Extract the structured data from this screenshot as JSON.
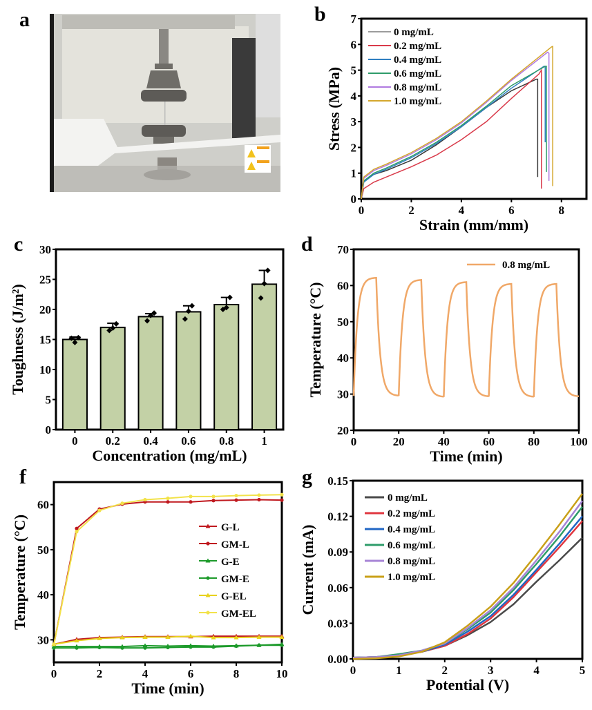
{
  "figure": {
    "panel_labels": [
      "a",
      "b",
      "c",
      "d",
      "f",
      "g"
    ],
    "photo": {
      "label": "a",
      "description": "Tensile testing machine with hydrogel sample clamped between grips"
    }
  },
  "chart_data": [
    {
      "id": "b",
      "type": "line",
      "panel_label": "b",
      "title": "",
      "xlabel": "Strain (mm/mm)",
      "ylabel": "Stress (MPa)",
      "xlim": [
        0,
        9
      ],
      "ylim": [
        0,
        7
      ],
      "xticks": [
        0,
        2,
        4,
        6,
        8
      ],
      "yticks": [
        0,
        1,
        2,
        3,
        4,
        5,
        6,
        7
      ],
      "legend_position": "top-left",
      "series": [
        {
          "name": "0 mg/mL",
          "color": "#3a3a3a",
          "x": [
            0,
            0.1,
            0.5,
            1,
            2,
            3,
            4,
            5,
            6,
            7.0,
            7.05,
            7.05
          ],
          "y": [
            0,
            0.7,
            0.95,
            1.1,
            1.5,
            2.1,
            2.8,
            3.55,
            4.2,
            4.65,
            4.65,
            0.85
          ]
        },
        {
          "name": "0.2 mg/mL",
          "color": "#d93a4a",
          "x": [
            0,
            0.1,
            0.5,
            1,
            2,
            3,
            4,
            5,
            6,
            7.1,
            7.2,
            7.2
          ],
          "y": [
            0,
            0.4,
            0.65,
            0.85,
            1.25,
            1.7,
            2.3,
            3.0,
            3.9,
            4.85,
            5.0,
            0.4
          ]
        },
        {
          "name": "0.4 mg/mL",
          "color": "#2f7fc1",
          "x": [
            0,
            0.1,
            0.5,
            1,
            2,
            3,
            4,
            5,
            6,
            7.3,
            7.35,
            7.35
          ],
          "y": [
            0,
            0.65,
            0.95,
            1.15,
            1.6,
            2.15,
            2.8,
            3.55,
            4.3,
            5.15,
            5.15,
            2.2
          ]
        },
        {
          "name": "0.6 mg/mL",
          "color": "#2e9c6a",
          "x": [
            0,
            0.1,
            0.5,
            1,
            2,
            3,
            4,
            5,
            6,
            7.35,
            7.4,
            7.4
          ],
          "y": [
            0,
            0.7,
            1.0,
            1.2,
            1.65,
            2.2,
            2.85,
            3.6,
            4.4,
            5.15,
            5.15,
            1.05
          ]
        },
        {
          "name": "0.8 mg/mL",
          "color": "#b07ae0",
          "x": [
            0,
            0.1,
            0.5,
            1,
            2,
            3,
            4,
            5,
            6,
            7.45,
            7.5,
            7.5
          ],
          "y": [
            0,
            0.8,
            1.1,
            1.3,
            1.75,
            2.3,
            2.95,
            3.75,
            4.6,
            5.7,
            5.65,
            0.7
          ]
        },
        {
          "name": "1.0 mg/mL",
          "color": "#d4a72c",
          "x": [
            0,
            0.1,
            0.5,
            1,
            2,
            3,
            4,
            5,
            6,
            7.6,
            7.65,
            7.65
          ],
          "y": [
            0,
            0.85,
            1.15,
            1.35,
            1.8,
            2.35,
            3.0,
            3.8,
            4.65,
            5.9,
            5.92,
            0.5
          ]
        }
      ]
    },
    {
      "id": "c",
      "type": "bar",
      "panel_label": "c",
      "title": "",
      "xlabel": "Concentration (mg/mL)",
      "ylabel": "Toughness (J/m²)",
      "categories": [
        "0",
        "0.2",
        "0.4",
        "0.6",
        "0.8",
        "1"
      ],
      "values": [
        15.0,
        17.0,
        18.8,
        19.6,
        20.8,
        24.2
      ],
      "errors": [
        0.4,
        0.7,
        0.5,
        1.0,
        1.2,
        2.3
      ],
      "points": [
        [
          15.2,
          14.5,
          15.3
        ],
        [
          16.5,
          16.9,
          17.6
        ],
        [
          18.1,
          19.0,
          19.4
        ],
        [
          18.4,
          19.7,
          20.6
        ],
        [
          20.0,
          20.3,
          22.0
        ],
        [
          21.9,
          24.3,
          26.5
        ]
      ],
      "ylim": [
        0,
        30
      ],
      "yticks": [
        0,
        5,
        10,
        15,
        20,
        25,
        30
      ],
      "bar_color": "#c3d1a6"
    },
    {
      "id": "d",
      "type": "line",
      "panel_label": "d",
      "title": "",
      "xlabel": "Time (min)",
      "ylabel": "Temperature (°C)",
      "xlim": [
        0,
        100
      ],
      "ylim": [
        20,
        70
      ],
      "xticks": [
        0,
        20,
        40,
        60,
        80,
        100
      ],
      "yticks": [
        20,
        30,
        40,
        50,
        60,
        70
      ],
      "legend_position": "top-right",
      "series": [
        {
          "name": "0.8 mg/mL",
          "color": "#f0a868",
          "cycles": [
            {
              "start": 0,
              "peak": 62.2,
              "base": 29.5
            },
            {
              "start": 20,
              "peak": 61.6,
              "base": 29.2
            },
            {
              "start": 40,
              "peak": 61.0,
              "base": 29.3
            },
            {
              "start": 60,
              "peak": 60.5,
              "base": 29.2
            },
            {
              "start": 80,
              "peak": 60.5,
              "base": 29.3
            }
          ],
          "initial": 29.5
        }
      ]
    },
    {
      "id": "f",
      "type": "line",
      "panel_label": "f",
      "title": "",
      "xlabel": "Time (min)",
      "ylabel": "Temperature (°C)",
      "xlim": [
        0,
        10
      ],
      "ylim": [
        25,
        65
      ],
      "xticks": [
        0,
        2,
        4,
        6,
        8,
        10
      ],
      "yticks": [
        30,
        40,
        50,
        60
      ],
      "legend_position": "center-right",
      "x": [
        0,
        1,
        2,
        3,
        4,
        5,
        6,
        7,
        8,
        9,
        10
      ],
      "series": [
        {
          "name": "G-L",
          "color": "#c0191f",
          "marker": "triangle",
          "values": [
            29.0,
            30.1,
            30.5,
            30.6,
            30.7,
            30.7,
            30.7,
            30.8,
            30.8,
            30.8,
            30.8
          ]
        },
        {
          "name": "GM-L",
          "color": "#c0191f",
          "marker": "circle",
          "values": [
            29.0,
            54.7,
            59.0,
            60.1,
            60.6,
            60.6,
            60.6,
            60.9,
            61.0,
            61.1,
            61.0
          ]
        },
        {
          "name": "G-E",
          "color": "#1c9a2a",
          "marker": "triangle",
          "values": [
            28.5,
            28.5,
            28.5,
            28.5,
            28.7,
            28.6,
            28.7,
            28.6,
            28.7,
            28.8,
            29.0
          ]
        },
        {
          "name": "GM-E",
          "color": "#1c9a2a",
          "marker": "circle",
          "values": [
            28.2,
            28.2,
            28.3,
            28.2,
            28.2,
            28.3,
            28.4,
            28.4,
            28.6,
            28.8,
            28.8
          ]
        },
        {
          "name": "G-EL",
          "color": "#e8d21d",
          "marker": "triangle",
          "values": [
            29.0,
            29.8,
            30.3,
            30.5,
            30.6,
            30.6,
            30.8,
            30.5,
            30.5,
            30.6,
            30.6
          ]
        },
        {
          "name": "GM-EL",
          "color": "#f2e24a",
          "marker": "circle",
          "values": [
            29.0,
            54.0,
            58.7,
            60.3,
            61.1,
            61.4,
            61.8,
            61.8,
            62.0,
            62.1,
            62.2
          ]
        }
      ]
    },
    {
      "id": "g",
      "type": "line",
      "panel_label": "g",
      "title": "",
      "xlabel": "Potential (V)",
      "ylabel": "Current (mA)",
      "xlim": [
        0,
        5
      ],
      "ylim": [
        0,
        0.15
      ],
      "xticks": [
        0,
        1,
        2,
        3,
        4,
        5
      ],
      "yticks": [
        "0.00",
        "0.03",
        "0.06",
        "0.09",
        "0.12",
        "0.15"
      ],
      "legend_position": "top-left",
      "x": [
        0,
        0.5,
        1,
        1.5,
        2,
        2.5,
        3,
        3.5,
        4,
        4.5,
        5
      ],
      "series": [
        {
          "name": "0 mg/mL",
          "color": "#4a4a4a",
          "values": [
            0.001,
            0.0015,
            0.003,
            0.006,
            0.011,
            0.02,
            0.031,
            0.046,
            0.065,
            0.083,
            0.102
          ]
        },
        {
          "name": "0.2 mg/mL",
          "color": "#e0363f",
          "values": [
            0.001,
            0.0015,
            0.003,
            0.006,
            0.011,
            0.021,
            0.034,
            0.052,
            0.073,
            0.094,
            0.116
          ]
        },
        {
          "name": "0.4 mg/mL",
          "color": "#2166c4",
          "values": [
            0.001,
            0.0015,
            0.003,
            0.006,
            0.012,
            0.023,
            0.036,
            0.054,
            0.075,
            0.097,
            0.12
          ]
        },
        {
          "name": "0.6 mg/mL",
          "color": "#2e9c6a",
          "values": [
            0.001,
            0.0015,
            0.004,
            0.007,
            0.013,
            0.025,
            0.039,
            0.058,
            0.08,
            0.103,
            0.128
          ]
        },
        {
          "name": "0.8 mg/mL",
          "color": "#a784d6",
          "values": [
            0.001,
            0.0015,
            0.003,
            0.007,
            0.013,
            0.026,
            0.041,
            0.06,
            0.083,
            0.107,
            0.133
          ]
        },
        {
          "name": "1.0 mg/mL",
          "color": "#c9a018",
          "values": [
            0.0,
            0.0005,
            0.002,
            0.006,
            0.014,
            0.028,
            0.044,
            0.064,
            0.088,
            0.113,
            0.139
          ]
        }
      ]
    }
  ]
}
